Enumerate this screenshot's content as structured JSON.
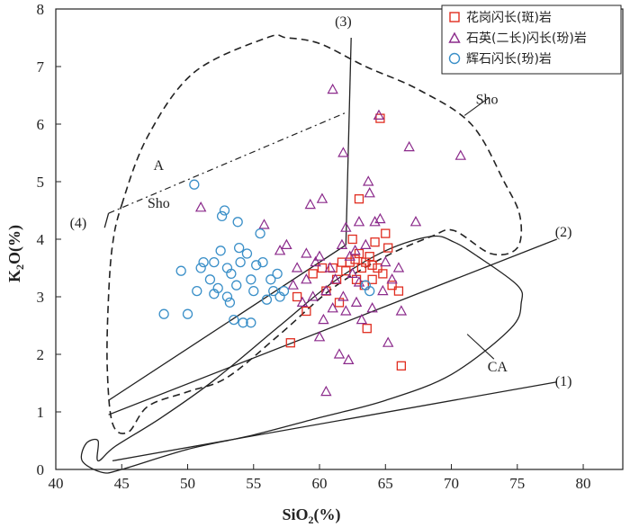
{
  "chart_data": {
    "type": "scatter",
    "title": "",
    "xlabel": "SiO2(%)",
    "ylabel": "K2O(%)",
    "xlabel_parts": [
      "SiO",
      "2",
      "(%)"
    ],
    "ylabel_parts": [
      "K",
      "2",
      "O(%)"
    ],
    "xlim": [
      40,
      83
    ],
    "ylim": [
      0,
      8
    ],
    "xticks": [
      40,
      45,
      50,
      55,
      60,
      65,
      70,
      75,
      80
    ],
    "yticks": [
      0,
      1,
      2,
      3,
      4,
      5,
      6,
      7,
      8
    ],
    "legend_position": "top-right",
    "series": [
      {
        "name": "花岗闪长(斑)岩",
        "marker": "square",
        "color": "#e02d20",
        "points": [
          [
            57.8,
            2.2
          ],
          [
            58.3,
            3.0
          ],
          [
            59.0,
            2.75
          ],
          [
            59.5,
            3.4
          ],
          [
            60.2,
            3.5
          ],
          [
            60.5,
            3.1
          ],
          [
            61.0,
            3.5
          ],
          [
            61.3,
            3.3
          ],
          [
            61.7,
            3.6
          ],
          [
            62.0,
            3.45
          ],
          [
            62.3,
            3.6
          ],
          [
            62.5,
            4.0
          ],
          [
            62.8,
            3.3
          ],
          [
            63.0,
            4.7
          ],
          [
            63.0,
            3.75
          ],
          [
            63.2,
            3.5
          ],
          [
            63.4,
            3.2
          ],
          [
            63.5,
            3.6
          ],
          [
            63.6,
            2.45
          ],
          [
            63.8,
            3.7
          ],
          [
            64.0,
            3.55
          ],
          [
            64.2,
            3.95
          ],
          [
            64.4,
            3.5
          ],
          [
            64.6,
            6.1
          ],
          [
            64.8,
            3.4
          ],
          [
            65.0,
            4.1
          ],
          [
            65.2,
            3.85
          ],
          [
            65.5,
            3.2
          ],
          [
            66.0,
            3.1
          ],
          [
            66.2,
            1.8
          ],
          [
            61.5,
            2.9
          ],
          [
            62.7,
            3.65
          ],
          [
            64.0,
            3.3
          ]
        ]
      },
      {
        "name": "石英(二长)闪长(玢)岩",
        "marker": "triangle",
        "color": "#8b2a8b",
        "points": [
          [
            51.0,
            4.55
          ],
          [
            55.8,
            4.25
          ],
          [
            57.0,
            3.8
          ],
          [
            57.5,
            3.9
          ],
          [
            58.0,
            3.2
          ],
          [
            58.3,
            3.5
          ],
          [
            58.7,
            2.9
          ],
          [
            59.0,
            3.3
          ],
          [
            59.3,
            4.6
          ],
          [
            59.5,
            3.0
          ],
          [
            59.7,
            3.6
          ],
          [
            60.0,
            2.3
          ],
          [
            60.2,
            4.7
          ],
          [
            60.3,
            2.6
          ],
          [
            60.5,
            3.1
          ],
          [
            60.5,
            1.35
          ],
          [
            60.8,
            3.5
          ],
          [
            61.0,
            2.8
          ],
          [
            61.0,
            6.6
          ],
          [
            61.2,
            3.3
          ],
          [
            61.5,
            2.0
          ],
          [
            61.7,
            3.9
          ],
          [
            61.8,
            5.5
          ],
          [
            62.0,
            4.2
          ],
          [
            62.0,
            2.75
          ],
          [
            62.2,
            1.9
          ],
          [
            62.3,
            3.7
          ],
          [
            62.5,
            3.4
          ],
          [
            62.8,
            2.9
          ],
          [
            63.0,
            3.25
          ],
          [
            63.0,
            4.3
          ],
          [
            63.2,
            2.6
          ],
          [
            63.5,
            3.9
          ],
          [
            63.7,
            5.0
          ],
          [
            63.8,
            4.8
          ],
          [
            64.0,
            2.8
          ],
          [
            64.2,
            4.3
          ],
          [
            64.5,
            6.15
          ],
          [
            64.6,
            4.35
          ],
          [
            65.0,
            3.6
          ],
          [
            65.2,
            2.2
          ],
          [
            65.5,
            3.3
          ],
          [
            66.0,
            3.5
          ],
          [
            66.2,
            2.75
          ],
          [
            66.8,
            5.6
          ],
          [
            67.3,
            4.3
          ],
          [
            70.7,
            5.45
          ],
          [
            59.0,
            3.75
          ],
          [
            60.0,
            3.7
          ],
          [
            61.8,
            3.0
          ],
          [
            62.7,
            3.8
          ],
          [
            64.8,
            3.1
          ]
        ]
      },
      {
        "name": "辉石闪长(玢)岩",
        "marker": "circle",
        "color": "#3a8fc8",
        "points": [
          [
            48.2,
            2.7
          ],
          [
            49.5,
            3.45
          ],
          [
            50.0,
            2.7
          ],
          [
            50.5,
            4.95
          ],
          [
            50.7,
            3.1
          ],
          [
            51.0,
            3.5
          ],
          [
            51.2,
            3.6
          ],
          [
            51.7,
            3.3
          ],
          [
            52.0,
            3.6
          ],
          [
            52.3,
            3.15
          ],
          [
            52.5,
            3.8
          ],
          [
            52.6,
            4.4
          ],
          [
            52.8,
            4.5
          ],
          [
            53.0,
            3.5
          ],
          [
            53.2,
            2.9
          ],
          [
            53.3,
            3.4
          ],
          [
            53.5,
            2.6
          ],
          [
            53.7,
            3.2
          ],
          [
            53.8,
            4.3
          ],
          [
            53.9,
            3.85
          ],
          [
            54.0,
            3.6
          ],
          [
            54.2,
            2.55
          ],
          [
            54.5,
            3.75
          ],
          [
            54.8,
            3.3
          ],
          [
            54.8,
            2.55
          ],
          [
            55.0,
            3.1
          ],
          [
            55.2,
            3.55
          ],
          [
            55.5,
            4.1
          ],
          [
            55.7,
            3.6
          ],
          [
            56.0,
            2.95
          ],
          [
            56.3,
            3.3
          ],
          [
            56.5,
            3.1
          ],
          [
            56.8,
            3.4
          ],
          [
            57.0,
            3.0
          ],
          [
            57.3,
            3.1
          ],
          [
            63.5,
            3.2
          ],
          [
            63.8,
            3.1
          ],
          [
            52.0,
            3.05
          ],
          [
            53.0,
            3.0
          ]
        ]
      }
    ],
    "field_labels": [
      {
        "text": "(1)",
        "x": 78.5,
        "y": 1.45
      },
      {
        "text": "(2)",
        "x": 78.5,
        "y": 4.05
      },
      {
        "text": "(3)",
        "x": 61.8,
        "y": 7.7
      },
      {
        "text": "(4)",
        "x": 41.7,
        "y": 4.2
      },
      {
        "text": "A",
        "x": 47.8,
        "y": 5.2
      },
      {
        "text": "Sho",
        "x": 47.8,
        "y": 4.55
      },
      {
        "text": "Sho",
        "x": 72.7,
        "y": 6.35
      },
      {
        "text": "CA",
        "x": 73.5,
        "y": 1.7
      }
    ],
    "boundaries": {
      "line1": [
        [
          44.3,
          0.15
        ],
        [
          78,
          1.52
        ]
      ],
      "line2": [
        [
          44.0,
          0.95
        ],
        [
          78,
          4.0
        ]
      ],
      "line3_lower": [
        [
          44.0,
          1.2
        ],
        [
          62.0,
          3.9
        ]
      ],
      "line3_vertical": [
        [
          62.0,
          3.9
        ],
        [
          62.4,
          7.5
        ]
      ],
      "line4": [
        [
          44.0,
          4.45
        ],
        [
          62.0,
          6.2
        ]
      ],
      "line4_left": [
        [
          43.7,
          4.2
        ],
        [
          44.0,
          4.45
        ]
      ],
      "sho_outline": [
        [
          45.0,
          4.6
        ],
        [
          47.0,
          5.8
        ],
        [
          50.5,
          6.9
        ],
        [
          56.0,
          7.5
        ],
        [
          57.5,
          7.5
        ],
        [
          60.0,
          7.4
        ],
        [
          63.5,
          7.0
        ],
        [
          67.5,
          6.6
        ],
        [
          71.5,
          6.0
        ],
        [
          74.0,
          5.0
        ],
        [
          75.2,
          4.4
        ],
        [
          75.0,
          3.85
        ],
        [
          73.0,
          3.75
        ],
        [
          70.2,
          4.15
        ],
        [
          68.5,
          4.05
        ],
        [
          65.0,
          3.7
        ],
        [
          61.0,
          3.15
        ],
        [
          57.0,
          2.35
        ],
        [
          53.0,
          1.6
        ],
        [
          50.0,
          1.35
        ],
        [
          47.0,
          1.1
        ],
        [
          45.5,
          0.65
        ],
        [
          44.3,
          0.8
        ],
        [
          43.9,
          1.8
        ],
        [
          44.0,
          3.0
        ],
        [
          44.3,
          3.9
        ]
      ],
      "ca_outline": [
        [
          43.2,
          0.15
        ],
        [
          44.5,
          0.4
        ],
        [
          48.0,
          0.9
        ],
        [
          52.0,
          1.55
        ],
        [
          57.0,
          2.5
        ],
        [
          61.0,
          3.25
        ],
        [
          65.0,
          3.8
        ],
        [
          68.5,
          4.05
        ],
        [
          70.2,
          3.95
        ],
        [
          72.0,
          3.7
        ],
        [
          75.0,
          3.2
        ],
        [
          75.3,
          2.9
        ],
        [
          74.5,
          2.45
        ],
        [
          70.0,
          1.65
        ],
        [
          65.0,
          1.2
        ],
        [
          60.0,
          0.9
        ],
        [
          55.0,
          0.6
        ],
        [
          50.0,
          0.35
        ],
        [
          45.0,
          0.0
        ],
        [
          43.5,
          -0.05
        ],
        [
          42.0,
          0.15
        ],
        [
          42.3,
          0.45
        ],
        [
          43.2,
          0.5
        ]
      ]
    }
  }
}
